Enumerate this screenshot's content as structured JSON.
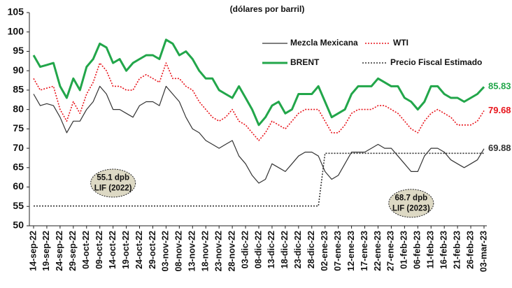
{
  "chart_data": {
    "type": "line",
    "subtitle": "(dólares por barril)",
    "categories": [
      "14-sep-22",
      null,
      "19-sep-22",
      null,
      "24-sep-22",
      null,
      "29-sep-22",
      null,
      "04-oct-22",
      null,
      "09-oct-22",
      null,
      "14-oct-22",
      null,
      "19-oct-22",
      null,
      "24-oct-22",
      null,
      "29-oct-22",
      null,
      "03-nov-22",
      null,
      "08-nov-22",
      null,
      "13-nov-22",
      null,
      "18-nov-22",
      null,
      "23-nov-22",
      null,
      "28-nov-22",
      null,
      "03-dic-22",
      null,
      "08-dic-22",
      null,
      "13-dic-22",
      null,
      "18-dic-22",
      null,
      "23-dic-22",
      null,
      "28-dic-22",
      null,
      "02-ene-23",
      null,
      "07-ene-23",
      null,
      "12-ene-23",
      null,
      "17-ene-23",
      null,
      "22-ene-23",
      null,
      "27-ene-23",
      null,
      "01-feb-23",
      null,
      "06-feb-23",
      null,
      "11-feb-23",
      null,
      "16-feb-23",
      null,
      "21-feb-23",
      null,
      "26-feb-23",
      null,
      "03-mar-23"
    ],
    "series": [
      {
        "name": "Mezcla Mexicana",
        "color": "#333333",
        "style": "solid",
        "width": 1.2,
        "values": [
          84,
          81,
          81.5,
          81,
          78,
          74,
          77,
          77,
          80,
          82,
          86,
          84,
          80,
          80,
          79,
          78,
          81,
          82,
          82,
          81,
          86,
          84,
          82,
          78,
          75,
          74,
          72,
          71,
          70,
          71,
          72,
          68,
          66,
          63,
          61,
          62,
          66,
          65,
          64,
          66,
          68,
          69,
          69,
          68,
          64,
          62,
          63,
          66,
          69,
          69,
          69,
          70,
          71,
          70,
          70,
          68,
          66,
          64,
          64,
          68,
          70,
          70,
          69,
          67,
          66,
          65,
          66,
          67,
          69.88
        ]
      },
      {
        "name": "WTI",
        "color": "#e8141b",
        "style": "dotted",
        "width": 1.6,
        "values": [
          88,
          85,
          85.5,
          86,
          80,
          77,
          82,
          79,
          84,
          87,
          92,
          90,
          86,
          86,
          85,
          85,
          88,
          89,
          88,
          87,
          92,
          88,
          88,
          86,
          85,
          82,
          80,
          78,
          77,
          78,
          80,
          77,
          76,
          74,
          72,
          74,
          77,
          76,
          75,
          77,
          79,
          80,
          80,
          80,
          77,
          74,
          74,
          76,
          79,
          80,
          80,
          80,
          81,
          81,
          80,
          79,
          77,
          75,
          74,
          77,
          79,
          80,
          79,
          78,
          76,
          76,
          76,
          77,
          79.68
        ]
      },
      {
        "name": "BRENT",
        "color": "#22a64a",
        "style": "solid",
        "width": 3,
        "values": [
          94,
          91,
          91.5,
          92,
          86,
          83,
          88,
          85,
          91,
          93,
          97,
          96,
          92,
          93,
          90,
          92,
          93,
          94,
          94,
          93,
          98,
          97,
          94,
          95,
          93,
          90,
          88,
          88,
          85,
          84,
          83,
          86,
          83,
          80,
          76,
          78,
          81,
          82,
          79,
          80,
          84,
          84,
          84,
          86,
          82,
          78,
          79,
          80,
          84,
          86,
          86,
          86,
          88,
          87,
          86,
          86,
          83,
          82,
          80,
          82,
          86,
          86,
          84,
          83,
          83,
          82,
          83,
          84,
          85.83
        ]
      },
      {
        "name": "Precio Fiscal Estimado",
        "color": "#333333",
        "style": "dotted",
        "width": 1.6,
        "values": [
          55.1,
          55.1,
          55.1,
          55.1,
          55.1,
          55.1,
          55.1,
          55.1,
          55.1,
          55.1,
          55.1,
          55.1,
          55.1,
          55.1,
          55.1,
          55.1,
          55.1,
          55.1,
          55.1,
          55.1,
          55.1,
          55.1,
          55.1,
          55.1,
          55.1,
          55.1,
          55.1,
          55.1,
          55.1,
          55.1,
          55.1,
          55.1,
          55.1,
          55.1,
          55.1,
          55.1,
          55.1,
          55.1,
          55.1,
          55.1,
          55.1,
          55.1,
          55.1,
          55.1,
          68.7,
          68.7,
          68.7,
          68.7,
          68.7,
          68.7,
          68.7,
          68.7,
          68.7,
          68.7,
          68.7,
          68.7,
          68.7,
          68.7,
          68.7,
          68.7,
          68.7,
          68.7,
          68.7,
          68.7,
          68.7,
          68.7,
          68.7,
          68.7,
          68.7
        ]
      }
    ],
    "end_labels": [
      0,
      1,
      2
    ],
    "annotations": [
      {
        "lines": [
          "55.1 dpb",
          "LIF (2022)"
        ],
        "at": 12,
        "value": 61
      },
      {
        "lines": [
          "68.7 dpb",
          "LIF (2023)"
        ],
        "at": 57,
        "value": 55.8
      }
    ],
    "ylim": [
      50,
      105
    ],
    "yticks": [
      50,
      55,
      60,
      65,
      70,
      75,
      80,
      85,
      90,
      95,
      100,
      105
    ]
  }
}
